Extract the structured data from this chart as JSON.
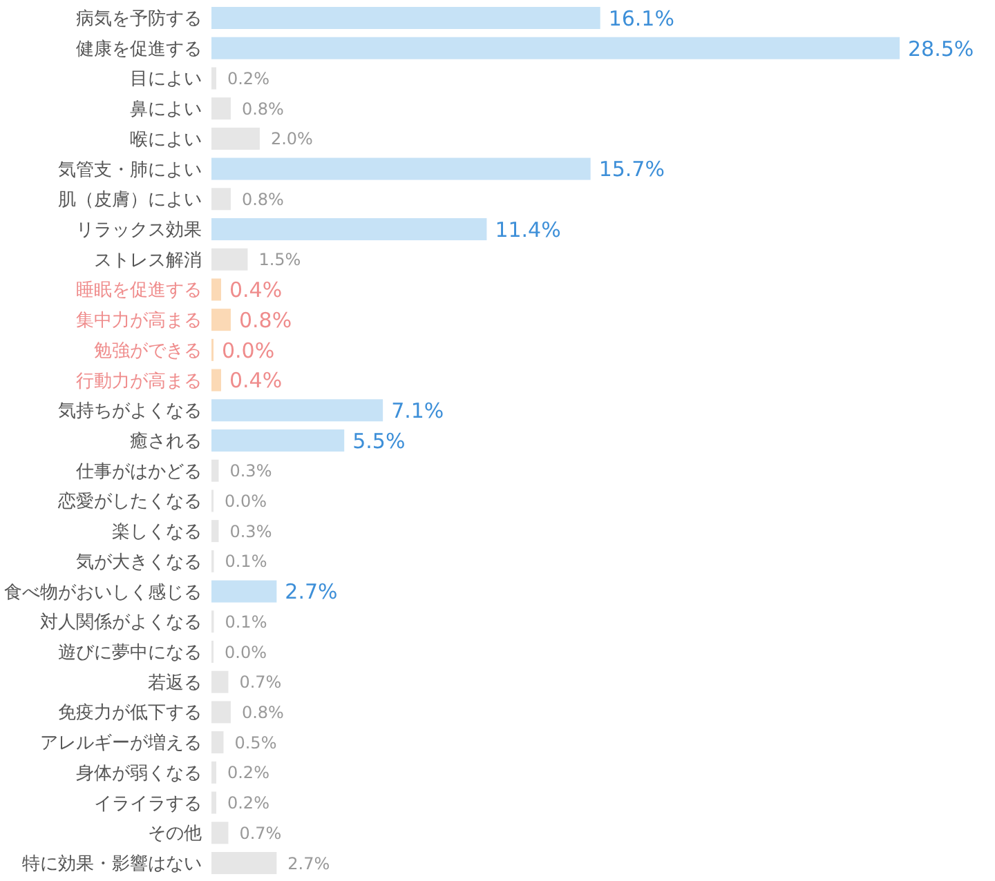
{
  "chart_data": {
    "type": "bar",
    "orientation": "horizontal",
    "data_labels": true,
    "categories": [
      "病気を予防する",
      "健康を促進する",
      "目によい",
      "鼻によい",
      "喉によい",
      "気管支・肺によい",
      "肌（皮膚）によい",
      "リラックス効果",
      "ストレス解消",
      "睡眠を促進する",
      "集中力が高まる",
      "勉強ができる",
      "行動力が高まる",
      "気持ちがよくなる",
      "癒される",
      "仕事がはかどる",
      "恋愛がしたくなる",
      "楽しくなる",
      "気が大きくなる",
      "食べ物がおいしく感じる",
      "対人関係がよくなる",
      "遊びに夢中になる",
      "若返る",
      "免疫力が低下する",
      "アレルギーが増える",
      "身体が弱くなる",
      "イライラする",
      "その他",
      "特に効果・影響はない"
    ],
    "values": [
      16.1,
      28.5,
      0.2,
      0.8,
      2.0,
      15.7,
      0.8,
      11.4,
      1.5,
      0.4,
      0.8,
      0.0,
      0.4,
      7.1,
      5.5,
      0.3,
      0.0,
      0.3,
      0.1,
      2.7,
      0.1,
      0.0,
      0.7,
      0.8,
      0.5,
      0.2,
      0.2,
      0.7,
      2.7
    ],
    "value_labels": [
      "16.1%",
      "28.5%",
      "0.2%",
      "0.8%",
      "2.0%",
      "15.7%",
      "0.8%",
      "11.4%",
      "1.5%",
      "0.4%",
      "0.8%",
      "0.0%",
      "0.4%",
      "7.1%",
      "5.5%",
      "0.3%",
      "0.0%",
      "0.3%",
      "0.1%",
      "2.7%",
      "0.1%",
      "0.0%",
      "0.7%",
      "0.8%",
      "0.5%",
      "0.2%",
      "0.2%",
      "0.7%",
      "2.7%"
    ],
    "colors": [
      "#c6e2f6",
      "#c6e2f6",
      "#e6e6e6",
      "#e6e6e6",
      "#e6e6e6",
      "#c6e2f6",
      "#e6e6e6",
      "#c6e2f6",
      "#e6e6e6",
      "#fbd9b5",
      "#fbd9b5",
      "#fbd9b5",
      "#fbd9b5",
      "#c6e2f6",
      "#c6e2f6",
      "#e6e6e6",
      "#e6e6e6",
      "#e6e6e6",
      "#e6e6e6",
      "#c6e2f6",
      "#e6e6e6",
      "#e6e6e6",
      "#e6e6e6",
      "#e6e6e6",
      "#e6e6e6",
      "#e6e6e6",
      "#e6e6e6",
      "#e6e6e6",
      "#e6e6e6"
    ]
  }
}
